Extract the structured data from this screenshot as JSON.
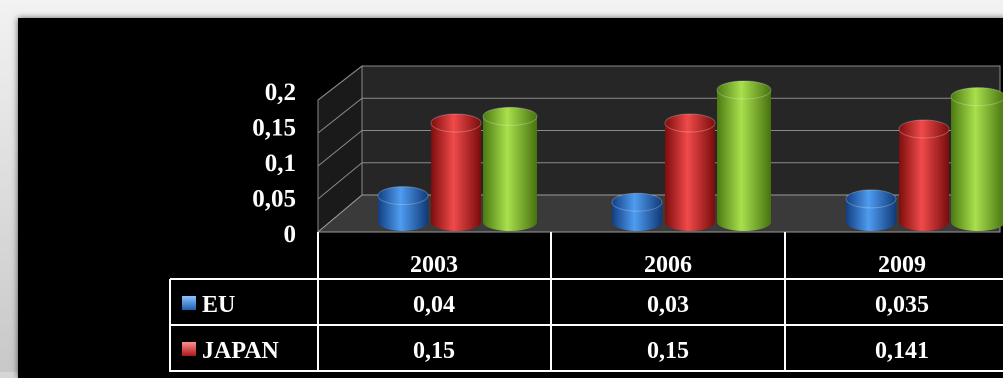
{
  "chart_data": {
    "type": "bar",
    "style": "3d-cylinder",
    "categories": [
      "2003",
      "2006",
      "2009"
    ],
    "series": [
      {
        "name": "EU",
        "values": [
          0.04,
          0.03,
          0.035
        ],
        "labels": [
          "0,04",
          "0,03",
          "0,035"
        ],
        "color": "#2f78d2"
      },
      {
        "name": "JAPAN",
        "values": [
          0.15,
          0.15,
          0.141
        ],
        "labels": [
          "0,15",
          "0,15",
          "0,141"
        ],
        "color": "#d92a2a"
      },
      {
        "name": "",
        "values": [
          0.16,
          0.2,
          0.19
        ],
        "labels": [],
        "color": "#86c22e"
      }
    ],
    "yticks": [
      "0",
      "0,05",
      "0,1",
      "0,15",
      "0,2"
    ],
    "ylim": [
      0,
      0.2
    ],
    "grid": true,
    "legend": "data-table",
    "title": "",
    "xlabel": "",
    "ylabel": ""
  }
}
